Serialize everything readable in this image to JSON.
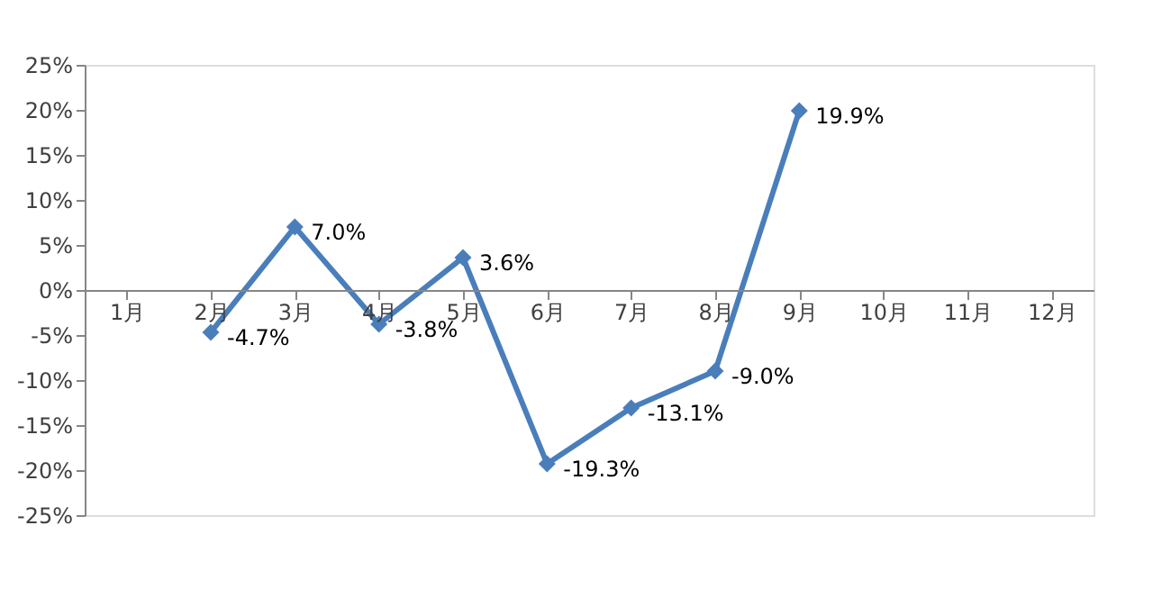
{
  "chart_data": {
    "type": "line",
    "categories": [
      "1月",
      "2月",
      "3月",
      "4月",
      "5月",
      "6月",
      "7月",
      "8月",
      "9月",
      "10月",
      "11月",
      "12月"
    ],
    "series": [
      {
        "color": "#4a7ebb",
        "values": [
          null,
          -4.7,
          7.0,
          -3.8,
          3.6,
          -19.3,
          -13.1,
          -9.0,
          19.9,
          null,
          null,
          null
        ],
        "value_labels": [
          null,
          "-4.7%",
          "7.0%",
          "-3.8%",
          "3.6%",
          "-19.3%",
          "-13.1%",
          "-9.0%",
          "19.9%",
          null,
          null,
          null
        ]
      }
    ],
    "ylim": [
      -25,
      25
    ],
    "yticks": [
      {
        "value": -25,
        "label": "-25%"
      },
      {
        "value": -20,
        "label": "-20%"
      },
      {
        "value": -15,
        "label": "-15%"
      },
      {
        "value": -10,
        "label": "-10%"
      },
      {
        "value": -5,
        "label": "-5%"
      },
      {
        "value": 0,
        "label": "0%"
      },
      {
        "value": 5,
        "label": "5%"
      },
      {
        "value": 10,
        "label": "10%"
      },
      {
        "value": 15,
        "label": "15%"
      },
      {
        "value": 20,
        "label": "20%"
      },
      {
        "value": 25,
        "label": "25%"
      }
    ],
    "grid": false,
    "marker": "diamond",
    "line_style": "solid"
  }
}
